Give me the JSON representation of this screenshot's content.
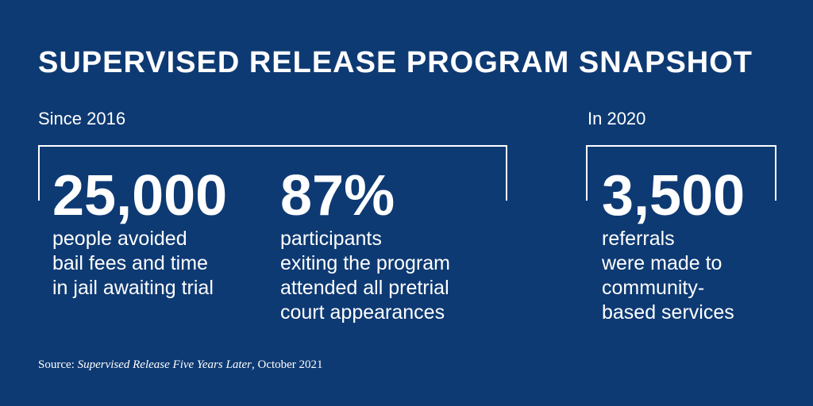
{
  "title": "SUPERVISED RELEASE PROGRAM SNAPSHOT",
  "sections": {
    "since": {
      "label": "Since 2016",
      "stats": [
        {
          "value": "25,000",
          "description": "people avoided\nbail fees and time\nin jail awaiting trial"
        },
        {
          "value": "87%",
          "description": "participants\nexiting the program\nattended all pretrial\ncourt appearances"
        }
      ]
    },
    "in2020": {
      "label": "In 2020",
      "stats": [
        {
          "value": "3,500",
          "description": "referrals\nwere made to\ncommunity-\nbased services"
        }
      ]
    }
  },
  "source": {
    "prefix": "Source: ",
    "title": "Supervised Release Five Years Later",
    "suffix": ", October 2021"
  },
  "colors": {
    "background": "#0e3a73",
    "text": "#ffffff"
  }
}
